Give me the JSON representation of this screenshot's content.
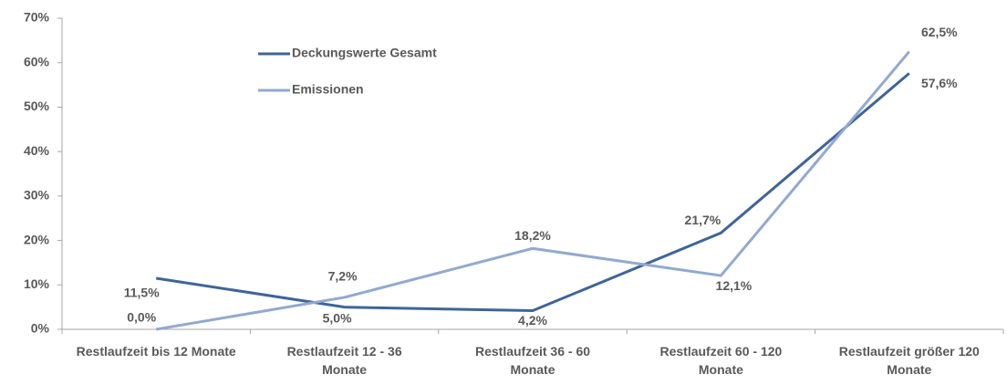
{
  "chart_data": {
    "type": "line",
    "categories": [
      "Restlaufzeit bis 12 Monate",
      "Restlaufzeit 12 - 36\nMonate",
      "Restlaufzeit 36 - 60\nMonate",
      "Restlaufzeit 60 - 120\nMonate",
      "Restlaufzeit größer 120\nMonate"
    ],
    "series": [
      {
        "name": "Deckungswerte Gesamt",
        "color": "#3f6598",
        "values": [
          11.5,
          5.0,
          4.2,
          21.7,
          57.6
        ],
        "value_labels": [
          "11,5%",
          "5,0%",
          "4,2%",
          "21,7%",
          "57,6%"
        ]
      },
      {
        "name": "Emissionen",
        "color": "#92a9d0",
        "values": [
          0.0,
          7.2,
          18.2,
          12.1,
          62.5
        ],
        "value_labels": [
          "0,0%",
          "7,2%",
          "18,2%",
          "12,1%",
          "62,5%"
        ]
      }
    ],
    "ylim": [
      0,
      70
    ],
    "yticks": [
      {
        "value": 0,
        "label": "0%"
      },
      {
        "value": 10,
        "label": "10%"
      },
      {
        "value": 20,
        "label": "20%"
      },
      {
        "value": 30,
        "label": "30%"
      },
      {
        "value": 40,
        "label": "40%"
      },
      {
        "value": 50,
        "label": "50%"
      },
      {
        "value": 60,
        "label": "60%"
      },
      {
        "value": 70,
        "label": "70%"
      }
    ],
    "grid": false,
    "legend": "top-left"
  }
}
